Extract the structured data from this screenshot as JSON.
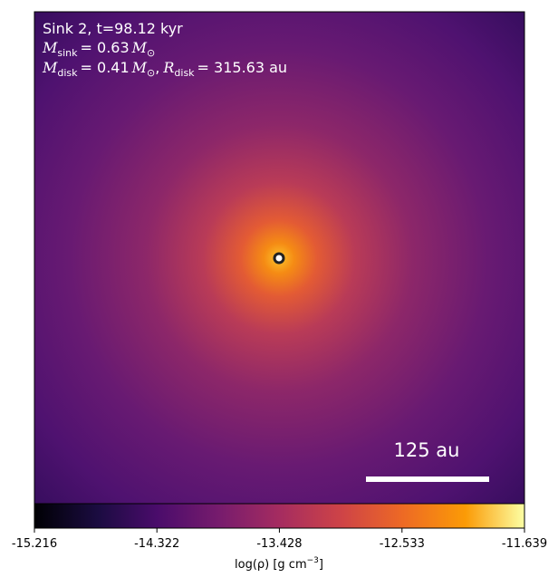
{
  "annotations": {
    "line1": "Sink 2, t=98.12 kyr",
    "line2": {
      "symbol": "M",
      "sub": "sink",
      "value": "= 0.63",
      "unit": "M",
      "unit_sub": "⊙"
    },
    "line3": {
      "symbol": "M",
      "sub": "disk",
      "value": "= 0.41",
      "unit": "M",
      "unit_sub": "⊙",
      "sep": ",",
      "symbol2": "R",
      "sub2": "disk",
      "value2": "= 315.63 au"
    }
  },
  "scale_bar": {
    "label": "125 au"
  },
  "colorbar": {
    "lim": [
      -15.216,
      -11.639
    ],
    "ticks": [
      -15.216,
      -14.322,
      -13.428,
      -12.533,
      -11.639
    ],
    "label": {
      "text": "log(ρ) [g cm",
      "sup": "−3",
      "end": "]"
    }
  }
}
